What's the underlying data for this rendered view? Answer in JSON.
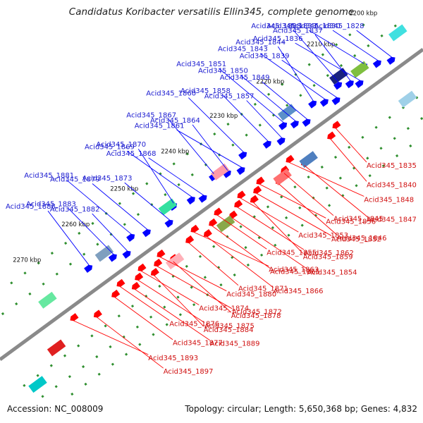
{
  "title": "Candidatus Koribacter versatilis Ellin345, complete genome",
  "accession": "Accession: NC_008009",
  "summary": "Topology: circular; Length: 5,650,368 bp; Genes: 4,832",
  "colors": {
    "backbone": "#8a8a8a",
    "forward_gene": "#0000ff",
    "reverse_gene": "#ff0000",
    "label_blue": "#1c1cd0",
    "label_red": "#d01010",
    "tick": "#2f8f2f"
  },
  "kbp_ticks": [
    {
      "label": "2200 kbp",
      "pos": 0.035
    },
    {
      "label": "2210 kbp",
      "pos": 0.135
    },
    {
      "label": "2220 kbp",
      "pos": 0.255
    },
    {
      "label": "2230 kbp",
      "pos": 0.365
    },
    {
      "label": "2240 kbp",
      "pos": 0.48
    },
    {
      "label": "2250 kbp",
      "pos": 0.6
    },
    {
      "label": "2260 kbp",
      "pos": 0.715
    },
    {
      "label": "2270 kbp",
      "pos": 0.83
    }
  ],
  "forward_genes": [
    {
      "label": "Acid345_1828",
      "pos": 0.06
    },
    {
      "label": "Acid345_1830",
      "pos": 0.085
    },
    {
      "label": "Acid345_1833",
      "pos": 0.11
    },
    {
      "label": "Acid345_1836",
      "pos": 0.135
    },
    {
      "label": "Acid345_1837",
      "pos": 0.15
    },
    {
      "label": "Acid345_1838",
      "pos": 0.17
    },
    {
      "label": "Acid345_1839",
      "pos": 0.19
    },
    {
      "label": "Acid345_1843",
      "pos": 0.21
    },
    {
      "label": "Acid345_1844",
      "pos": 0.23
    },
    {
      "label": "Acid345_1849",
      "pos": 0.26
    },
    {
      "label": "Acid345_1850",
      "pos": 0.28
    },
    {
      "label": "Acid345_1851",
      "pos": 0.3
    },
    {
      "label": "Acid345_1857",
      "pos": 0.32
    },
    {
      "label": "Acid345_1858",
      "pos": 0.345
    },
    {
      "label": "Acid345_1860",
      "pos": 0.395
    },
    {
      "label": "Acid345_1861",
      "pos": 0.415
    },
    {
      "label": "Acid345_1864",
      "pos": 0.44
    },
    {
      "label": "Acid345_1867",
      "pos": 0.465
    },
    {
      "label": "Acid345_1868",
      "pos": 0.505
    },
    {
      "label": "Acid345_1869",
      "pos": 0.525
    },
    {
      "label": "Acid345_1870",
      "pos": 0.56
    },
    {
      "label": "Acid345_1873",
      "pos": 0.585
    },
    {
      "label": "Acid345_1879",
      "pos": 0.63
    },
    {
      "label": "Acid345_1881",
      "pos": 0.66
    },
    {
      "label": "Acid345_1882",
      "pos": 0.685
    },
    {
      "label": "Acid345_1883",
      "pos": 0.71
    },
    {
      "label": "Acid345_1888",
      "pos": 0.76
    }
  ],
  "reverse_genes": [
    {
      "label": "Acid345_1835",
      "pos": 0.22
    },
    {
      "label": "Acid345_1840",
      "pos": 0.24
    },
    {
      "label": "Acid345_1847",
      "pos": 0.31
    },
    {
      "label": "Acid345_1848",
      "pos": 0.33
    },
    {
      "label": "Acid345_1845",
      "pos": 0.35
    },
    {
      "label": "Acid345_1846",
      "pos": 0.37
    },
    {
      "label": "Acid345_1856",
      "pos": 0.4
    },
    {
      "label": "Acid345_1852",
      "pos": 0.415
    },
    {
      "label": "Acid345_1859",
      "pos": 0.43
    },
    {
      "label": "Acid345_1853",
      "pos": 0.445
    },
    {
      "label": "Acid345_1862",
      "pos": 0.46
    },
    {
      "label": "Acid345_1854",
      "pos": 0.48
    },
    {
      "label": "Acid345_1855",
      "pos": 0.5
    },
    {
      "label": "Acid345_1865",
      "pos": 0.52
    },
    {
      "label": "Acid345_1866",
      "pos": 0.54
    },
    {
      "label": "Acid345_1863",
      "pos": 0.555
    },
    {
      "label": "Acid345_1871",
      "pos": 0.575
    },
    {
      "label": "Acid345_1878",
      "pos": 0.62
    },
    {
      "label": "Acid345_1880",
      "pos": 0.635
    },
    {
      "label": "Acid345_1872",
      "pos": 0.65
    },
    {
      "label": "Acid345_1884",
      "pos": 0.665
    },
    {
      "label": "Acid345_1874",
      "pos": 0.68
    },
    {
      "label": "Acid345_1875",
      "pos": 0.695
    },
    {
      "label": "Acid345_1889",
      "pos": 0.71
    },
    {
      "label": "Acid345_1876",
      "pos": 0.73
    },
    {
      "label": "Acid345_1877",
      "pos": 0.75
    },
    {
      "label": "Acid345_1897",
      "pos": 0.8
    },
    {
      "label": "Acid345_1893",
      "pos": 0.84
    }
  ]
}
